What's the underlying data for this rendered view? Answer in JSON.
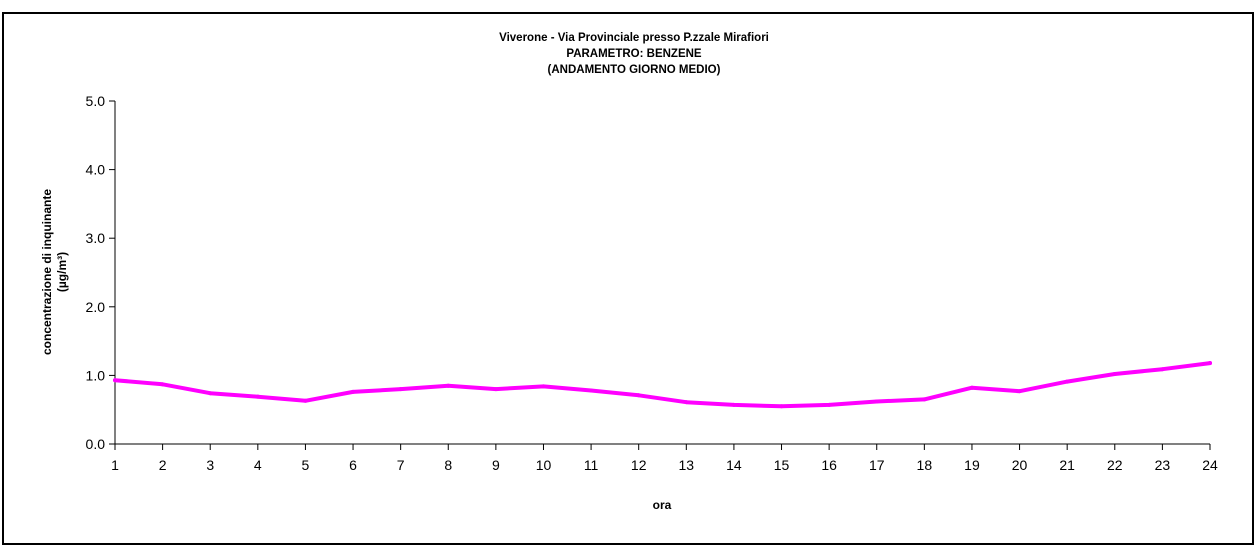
{
  "chart_data": {
    "type": "line",
    "title_lines": [
      "Viverone - Via Provinciale presso P.zzale Mirafiori",
      "PARAMETRO: BENZENE",
      "(ANDAMENTO GIORNO MEDIO)"
    ],
    "xlabel": "ora",
    "ylabel_lines": [
      "concentrazione di inquinante",
      "(µg/m³)"
    ],
    "x": [
      1,
      2,
      3,
      4,
      5,
      6,
      7,
      8,
      9,
      10,
      11,
      12,
      13,
      14,
      15,
      16,
      17,
      18,
      19,
      20,
      21,
      22,
      23,
      24
    ],
    "x_tick_labels": [
      "1",
      "2",
      "3",
      "4",
      "5",
      "6",
      "7",
      "8",
      "9",
      "10",
      "11",
      "12",
      "13",
      "14",
      "15",
      "16",
      "17",
      "18",
      "19",
      "20",
      "21",
      "22",
      "23",
      "24"
    ],
    "series": [
      {
        "values": [
          0.93,
          0.87,
          0.74,
          0.69,
          0.63,
          0.76,
          0.8,
          0.85,
          0.8,
          0.84,
          0.78,
          0.71,
          0.61,
          0.57,
          0.55,
          0.57,
          0.62,
          0.65,
          0.82,
          0.77,
          0.91,
          1.02,
          1.09,
          1.18
        ],
        "color": "#ff00ff"
      }
    ],
    "ylim": [
      0,
      5
    ],
    "y_tick_labels": [
      "0.0",
      "1.0",
      "2.0",
      "3.0",
      "4.0",
      "5.0"
    ],
    "grid": false,
    "legend": "none"
  }
}
